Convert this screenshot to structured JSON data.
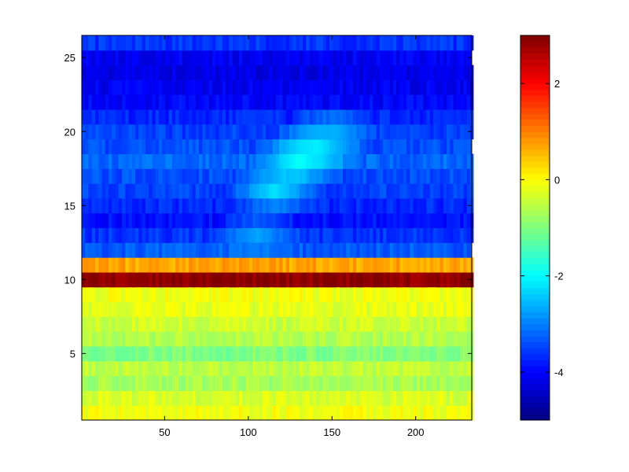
{
  "chart_data": {
    "type": "heatmap",
    "title": "",
    "xlabel": "",
    "ylabel": "",
    "xlim": [
      1,
      233
    ],
    "ylim": [
      1,
      26
    ],
    "x_ticks": [
      "50",
      "100",
      "150",
      "200"
    ],
    "y_ticks": [
      "5",
      "10",
      "15",
      "20",
      "25"
    ],
    "rows": [
      {
        "y": 1,
        "value": -0.1
      },
      {
        "y": 2,
        "value": -0.3
      },
      {
        "y": 3,
        "value": -0.7
      },
      {
        "y": 4,
        "value": -0.5
      },
      {
        "y": 5,
        "value": -1.0
      },
      {
        "y": 6,
        "value": -0.6
      },
      {
        "y": 7,
        "value": -0.4
      },
      {
        "y": 8,
        "value": -0.2
      },
      {
        "y": 9,
        "value": -0.1
      },
      {
        "y": 10,
        "value": 2.9
      },
      {
        "y": 11,
        "value": 0.7
      },
      {
        "y": 12,
        "value": -3.3
      },
      {
        "y": 13,
        "value": -3.6
      },
      {
        "y": 14,
        "value": -3.9
      },
      {
        "y": 15,
        "value": -3.7
      },
      {
        "y": 16,
        "value": -3.5
      },
      {
        "y": 17,
        "value": -3.4
      },
      {
        "y": 18,
        "value": -3.2
      },
      {
        "y": 19,
        "value": -3.4
      },
      {
        "y": 20,
        "value": -3.5
      },
      {
        "y": 21,
        "value": -3.7
      },
      {
        "y": 22,
        "value": -4.0
      },
      {
        "y": 23,
        "value": -4.1
      },
      {
        "y": 24,
        "value": -4.2
      },
      {
        "y": 25,
        "value": -4.1
      },
      {
        "y": 26,
        "value": -3.6
      }
    ],
    "highlight": {
      "description": "cyan ridge",
      "points": [
        {
          "x": 105,
          "y": 13,
          "value": -2.7
        },
        {
          "x": 115,
          "y": 16,
          "value": -2.2
        },
        {
          "x": 130,
          "y": 18,
          "value": -1.9
        },
        {
          "x": 140,
          "y": 19,
          "value": -2.1
        },
        {
          "x": 150,
          "y": 20,
          "value": -2.6
        }
      ]
    },
    "colorbar": {
      "colormap": "jet",
      "range": [
        -5,
        3
      ],
      "ticks": [
        "-4",
        "-2",
        "0",
        "2"
      ]
    }
  }
}
